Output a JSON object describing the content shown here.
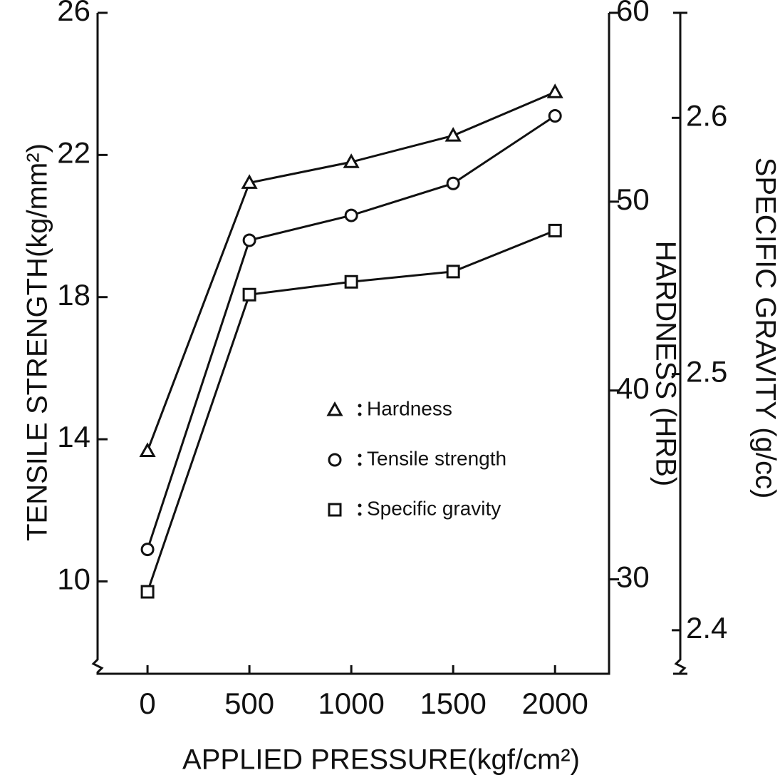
{
  "chart_data": {
    "type": "line",
    "x_label": "APPLIED PRESSURE(kgf/cm²)",
    "y_label": "TENSILE STRENGTH(kg/mm²)",
    "y2_label": "HARDNESS (HRB)",
    "y3_label": "SPECIFIC GRAVITY (g/cc)",
    "x": [
      0,
      500,
      1000,
      1500,
      2000
    ],
    "xlim": [
      -245,
      2265
    ],
    "xticks": [
      0,
      500,
      1000,
      1500,
      2000
    ],
    "ylim": [
      7.4,
      26
    ],
    "yticks": [
      10,
      14,
      18,
      22,
      26
    ],
    "y2lim": [
      25,
      60
    ],
    "y2ticks": [
      30,
      40,
      50,
      60
    ],
    "y3lim": [
      2.383,
      2.641
    ],
    "y3ticks": [
      {
        "value": 2.4,
        "label": "2.4"
      },
      {
        "value": 2.5,
        "label": "2.5"
      },
      {
        "value": 2.6,
        "label": "2.6"
      }
    ],
    "series": [
      {
        "name": "Hardness",
        "color": "#111111",
        "marker": "triangle",
        "axis": "y2",
        "values": [
          36.8,
          51.0,
          52.1,
          53.5,
          55.8
        ]
      },
      {
        "name": "Tensile strength",
        "color": "#111111",
        "marker": "circle",
        "axis": "y",
        "values": [
          10.9,
          19.6,
          20.3,
          21.2,
          23.1
        ]
      },
      {
        "name": "Specific gravity",
        "color": "#111111",
        "marker": "square",
        "axis": "y3",
        "values": [
          2.415,
          2.531,
          2.536,
          2.54,
          2.556
        ]
      }
    ]
  }
}
